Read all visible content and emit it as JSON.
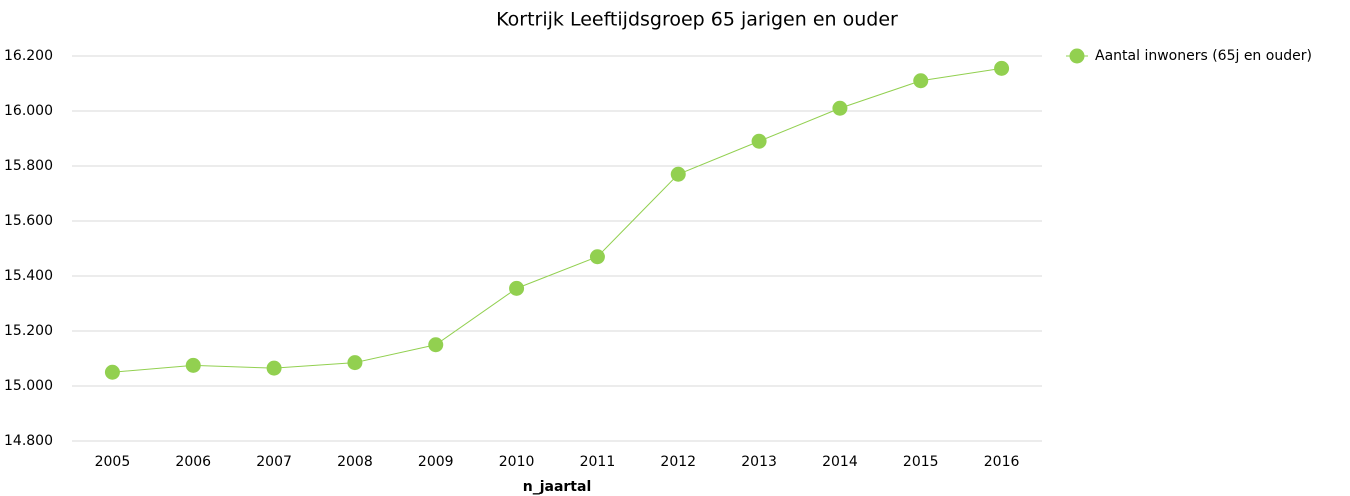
{
  "chart_data": {
    "type": "line",
    "title": "Kortrijk  Leeftijdsgroep 65 jarigen en ouder",
    "x_label": "n_jaartal",
    "categories": [
      "2005",
      "2006",
      "2007",
      "2008",
      "2009",
      "2010",
      "2011",
      "2012",
      "2013",
      "2014",
      "2015",
      "2016"
    ],
    "series": [
      {
        "name": "Aantal inwoners (65j en ouder)",
        "color": "#92d050",
        "values": [
          15050,
          15075,
          15065,
          15085,
          15150,
          15355,
          15470,
          15770,
          15890,
          16010,
          16110,
          16155
        ]
      }
    ],
    "ylim": [
      14800,
      16200
    ],
    "yticks": [
      {
        "value": 14800,
        "label": "14.800"
      },
      {
        "value": 15000,
        "label": "15.000"
      },
      {
        "value": 15200,
        "label": "15.200"
      },
      {
        "value": 15400,
        "label": "15.400"
      },
      {
        "value": 15600,
        "label": "15.600"
      },
      {
        "value": 15800,
        "label": "15.800"
      },
      {
        "value": 16000,
        "label": "16.000"
      },
      {
        "value": 16200,
        "label": "16.200"
      }
    ],
    "grid": true,
    "legend": "right"
  }
}
